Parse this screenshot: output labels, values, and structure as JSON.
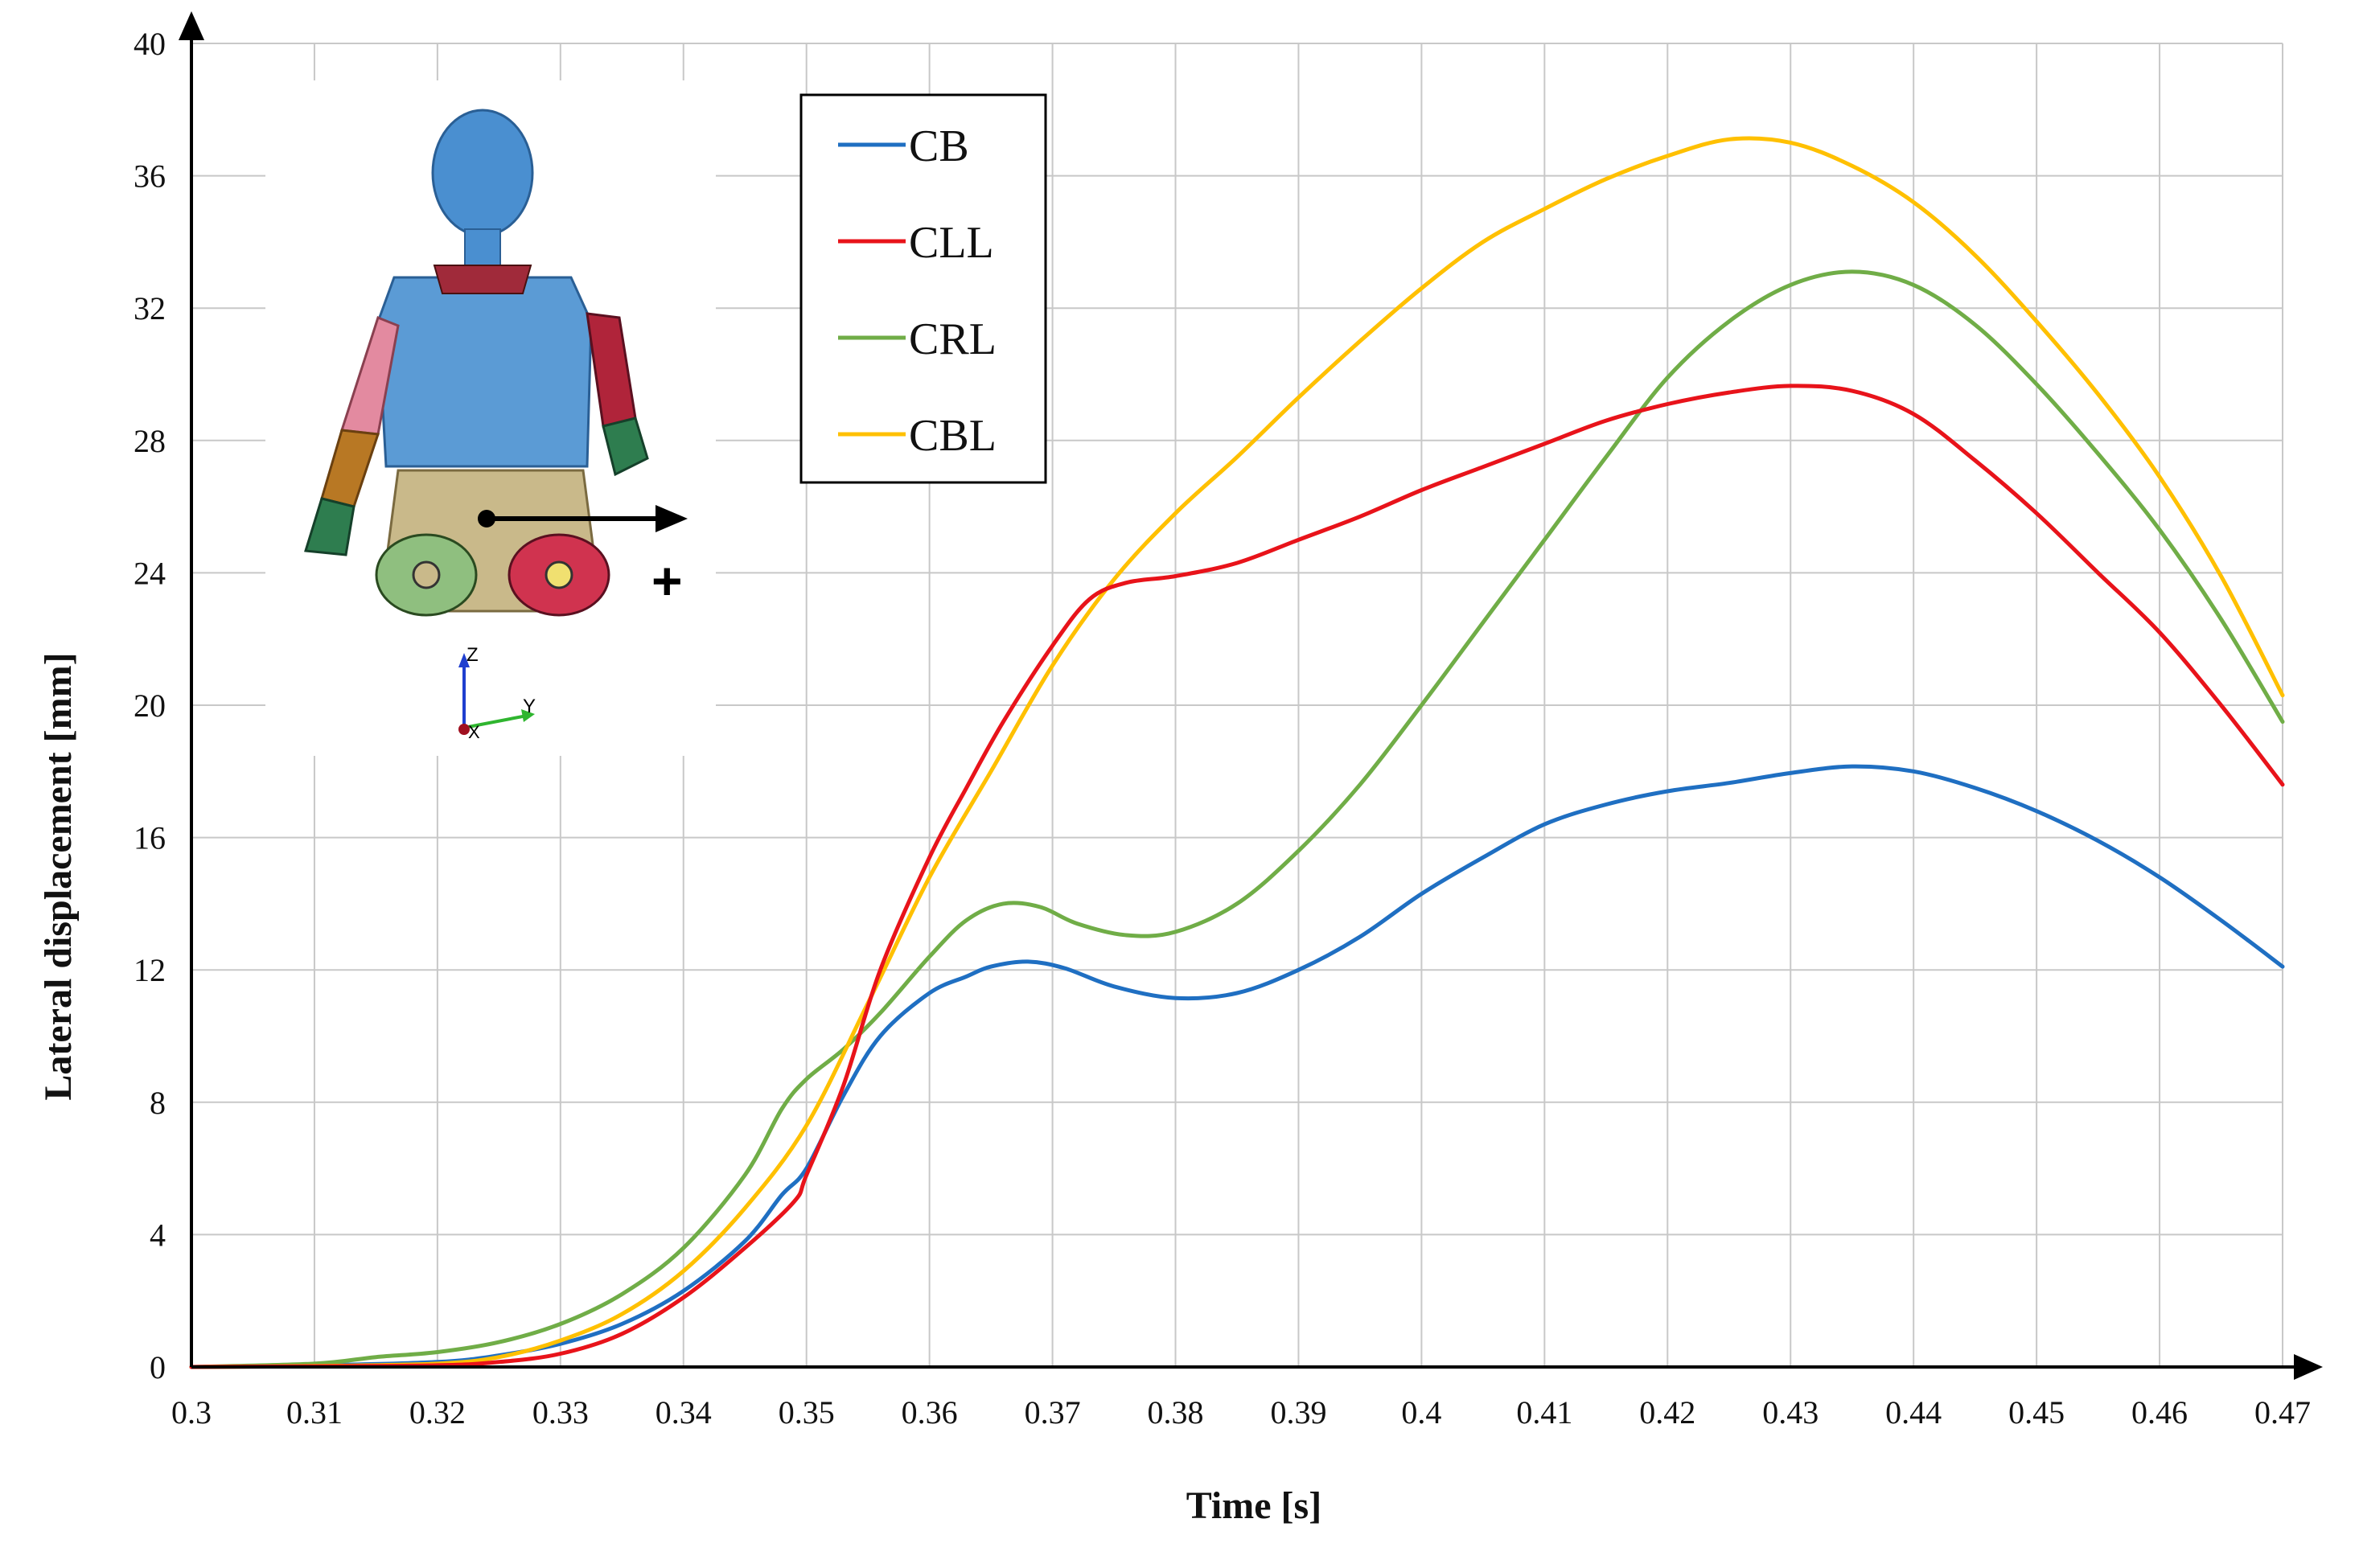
{
  "chart_data": {
    "type": "line",
    "xlabel": "Time [s]",
    "ylabel": "Lateral displacement [mm]",
    "xlim": [
      0.3,
      0.47
    ],
    "ylim": [
      0,
      40
    ],
    "x_ticks": [
      "0.3",
      "0.31",
      "0.32",
      "0.33",
      "0.34",
      "0.35",
      "0.36",
      "0.37",
      "0.38",
      "0.39",
      "0.4",
      "0.41",
      "0.42",
      "0.43",
      "0.44",
      "0.45",
      "0.46",
      "0.47"
    ],
    "y_ticks": [
      "0",
      "4",
      "8",
      "12",
      "16",
      "20",
      "24",
      "28",
      "32",
      "36",
      "40"
    ],
    "grid": true,
    "legend_position": "top-center",
    "series": [
      {
        "name": "CB",
        "color": "#1f6fc2",
        "points": [
          [
            0.3,
            0
          ],
          [
            0.31,
            0.05
          ],
          [
            0.32,
            0.15
          ],
          [
            0.325,
            0.35
          ],
          [
            0.33,
            0.7
          ],
          [
            0.335,
            1.3
          ],
          [
            0.34,
            2.3
          ],
          [
            0.345,
            3.8
          ],
          [
            0.348,
            5.2
          ],
          [
            0.35,
            6
          ],
          [
            0.353,
            8.2
          ],
          [
            0.356,
            10
          ],
          [
            0.36,
            11.3
          ],
          [
            0.363,
            11.8
          ],
          [
            0.365,
            12.1
          ],
          [
            0.368,
            12.25
          ],
          [
            0.371,
            12.05
          ],
          [
            0.375,
            11.5
          ],
          [
            0.38,
            11.15
          ],
          [
            0.385,
            11.3
          ],
          [
            0.39,
            12
          ],
          [
            0.395,
            13
          ],
          [
            0.4,
            14.3
          ],
          [
            0.405,
            15.4
          ],
          [
            0.41,
            16.4
          ],
          [
            0.415,
            17
          ],
          [
            0.42,
            17.4
          ],
          [
            0.425,
            17.65
          ],
          [
            0.43,
            17.95
          ],
          [
            0.435,
            18.15
          ],
          [
            0.44,
            18
          ],
          [
            0.445,
            17.5
          ],
          [
            0.45,
            16.8
          ],
          [
            0.455,
            15.9
          ],
          [
            0.46,
            14.8
          ],
          [
            0.465,
            13.5
          ],
          [
            0.47,
            12.1
          ]
        ]
      },
      {
        "name": "CLL",
        "color": "#e8131a",
        "points": [
          [
            0.3,
            0
          ],
          [
            0.31,
            0.02
          ],
          [
            0.32,
            0.05
          ],
          [
            0.325,
            0.15
          ],
          [
            0.33,
            0.4
          ],
          [
            0.335,
            1
          ],
          [
            0.34,
            2.1
          ],
          [
            0.345,
            3.6
          ],
          [
            0.349,
            5
          ],
          [
            0.35,
            5.8
          ],
          [
            0.353,
            8.5
          ],
          [
            0.356,
            12
          ],
          [
            0.36,
            15.4
          ],
          [
            0.363,
            17.5
          ],
          [
            0.366,
            19.5
          ],
          [
            0.37,
            21.8
          ],
          [
            0.373,
            23.2
          ],
          [
            0.376,
            23.7
          ],
          [
            0.38,
            23.9
          ],
          [
            0.385,
            24.3
          ],
          [
            0.39,
            25
          ],
          [
            0.395,
            25.7
          ],
          [
            0.4,
            26.5
          ],
          [
            0.405,
            27.2
          ],
          [
            0.41,
            27.9
          ],
          [
            0.415,
            28.6
          ],
          [
            0.42,
            29.1
          ],
          [
            0.425,
            29.45
          ],
          [
            0.43,
            29.65
          ],
          [
            0.435,
            29.5
          ],
          [
            0.44,
            28.8
          ],
          [
            0.445,
            27.4
          ],
          [
            0.45,
            25.8
          ],
          [
            0.455,
            24
          ],
          [
            0.46,
            22.2
          ],
          [
            0.465,
            20
          ],
          [
            0.47,
            17.6
          ]
        ]
      },
      {
        "name": "CRL",
        "color": "#70ad47",
        "points": [
          [
            0.3,
            0
          ],
          [
            0.31,
            0.1
          ],
          [
            0.315,
            0.3
          ],
          [
            0.32,
            0.45
          ],
          [
            0.325,
            0.75
          ],
          [
            0.33,
            1.3
          ],
          [
            0.335,
            2.2
          ],
          [
            0.34,
            3.6
          ],
          [
            0.345,
            5.8
          ],
          [
            0.348,
            7.8
          ],
          [
            0.35,
            8.7
          ],
          [
            0.353,
            9.6
          ],
          [
            0.356,
            10.7
          ],
          [
            0.36,
            12.4
          ],
          [
            0.363,
            13.5
          ],
          [
            0.366,
            14
          ],
          [
            0.369,
            13.9
          ],
          [
            0.372,
            13.4
          ],
          [
            0.376,
            13.05
          ],
          [
            0.38,
            13.15
          ],
          [
            0.385,
            14
          ],
          [
            0.39,
            15.6
          ],
          [
            0.395,
            17.6
          ],
          [
            0.4,
            20
          ],
          [
            0.405,
            22.5
          ],
          [
            0.41,
            25
          ],
          [
            0.415,
            27.5
          ],
          [
            0.42,
            29.9
          ],
          [
            0.425,
            31.6
          ],
          [
            0.43,
            32.7
          ],
          [
            0.435,
            33.1
          ],
          [
            0.44,
            32.7
          ],
          [
            0.445,
            31.5
          ],
          [
            0.45,
            29.7
          ],
          [
            0.455,
            27.6
          ],
          [
            0.46,
            25.3
          ],
          [
            0.465,
            22.6
          ],
          [
            0.47,
            19.5
          ]
        ]
      },
      {
        "name": "CBL",
        "color": "#ffc000",
        "points": [
          [
            0.3,
            0
          ],
          [
            0.31,
            0.03
          ],
          [
            0.32,
            0.1
          ],
          [
            0.325,
            0.3
          ],
          [
            0.33,
            0.8
          ],
          [
            0.335,
            1.6
          ],
          [
            0.34,
            2.9
          ],
          [
            0.345,
            4.8
          ],
          [
            0.35,
            7.3
          ],
          [
            0.355,
            11
          ],
          [
            0.36,
            14.8
          ],
          [
            0.365,
            18
          ],
          [
            0.37,
            21.2
          ],
          [
            0.375,
            23.8
          ],
          [
            0.38,
            25.8
          ],
          [
            0.385,
            27.5
          ],
          [
            0.39,
            29.3
          ],
          [
            0.395,
            31
          ],
          [
            0.4,
            32.6
          ],
          [
            0.405,
            34
          ],
          [
            0.41,
            35
          ],
          [
            0.415,
            35.9
          ],
          [
            0.42,
            36.6
          ],
          [
            0.425,
            37.1
          ],
          [
            0.43,
            37
          ],
          [
            0.435,
            36.3
          ],
          [
            0.44,
            35.2
          ],
          [
            0.445,
            33.6
          ],
          [
            0.45,
            31.6
          ],
          [
            0.455,
            29.4
          ],
          [
            0.46,
            26.9
          ],
          [
            0.465,
            23.9
          ],
          [
            0.47,
            20.3
          ]
        ]
      }
    ]
  },
  "inset": {
    "axis_z": "Z",
    "axis_y": "Y",
    "axis_x": "X",
    "direction_sign": "+"
  }
}
